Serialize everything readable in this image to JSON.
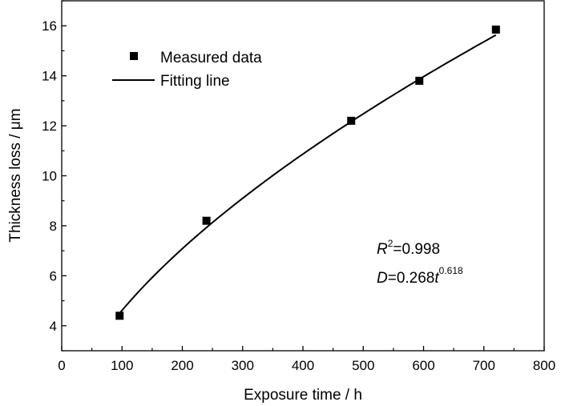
{
  "chart_data": {
    "type": "scatter",
    "xlabel": "Exposure time / h",
    "ylabel": "Thickness loss / μm",
    "xlim": [
      0,
      800
    ],
    "ylim": [
      3,
      17
    ],
    "x_ticks": [
      0,
      100,
      200,
      300,
      400,
      500,
      600,
      700,
      800
    ],
    "y_ticks": [
      4,
      6,
      8,
      10,
      12,
      14,
      16
    ],
    "x_tick_labels": [
      "0",
      "100",
      "200",
      "300",
      "400",
      "500",
      "600",
      "700",
      "800"
    ],
    "y_tick_labels": [
      "4",
      "6",
      "8",
      "10",
      "12",
      "14",
      "16"
    ],
    "grid": false,
    "legend_position": "top-left",
    "series": [
      {
        "name": "Measured data",
        "kind": "scatter",
        "marker": "square",
        "color": "#000000",
        "x": [
          96,
          240,
          480,
          593,
          720
        ],
        "y": [
          4.4,
          8.2,
          12.2,
          13.8,
          15.85
        ]
      },
      {
        "name": "Fitting line",
        "kind": "line",
        "color": "#000000",
        "coefficient": 0.268,
        "exponent": 0.618,
        "x_range": [
          96,
          720
        ]
      }
    ],
    "annotation": {
      "r2_symbol": "R",
      "r2_power": "2",
      "r2_value": "=0.998",
      "eq_symbol": "D",
      "eq_middle": "=0.268",
      "eq_var": "t",
      "eq_power": "0.618"
    }
  }
}
